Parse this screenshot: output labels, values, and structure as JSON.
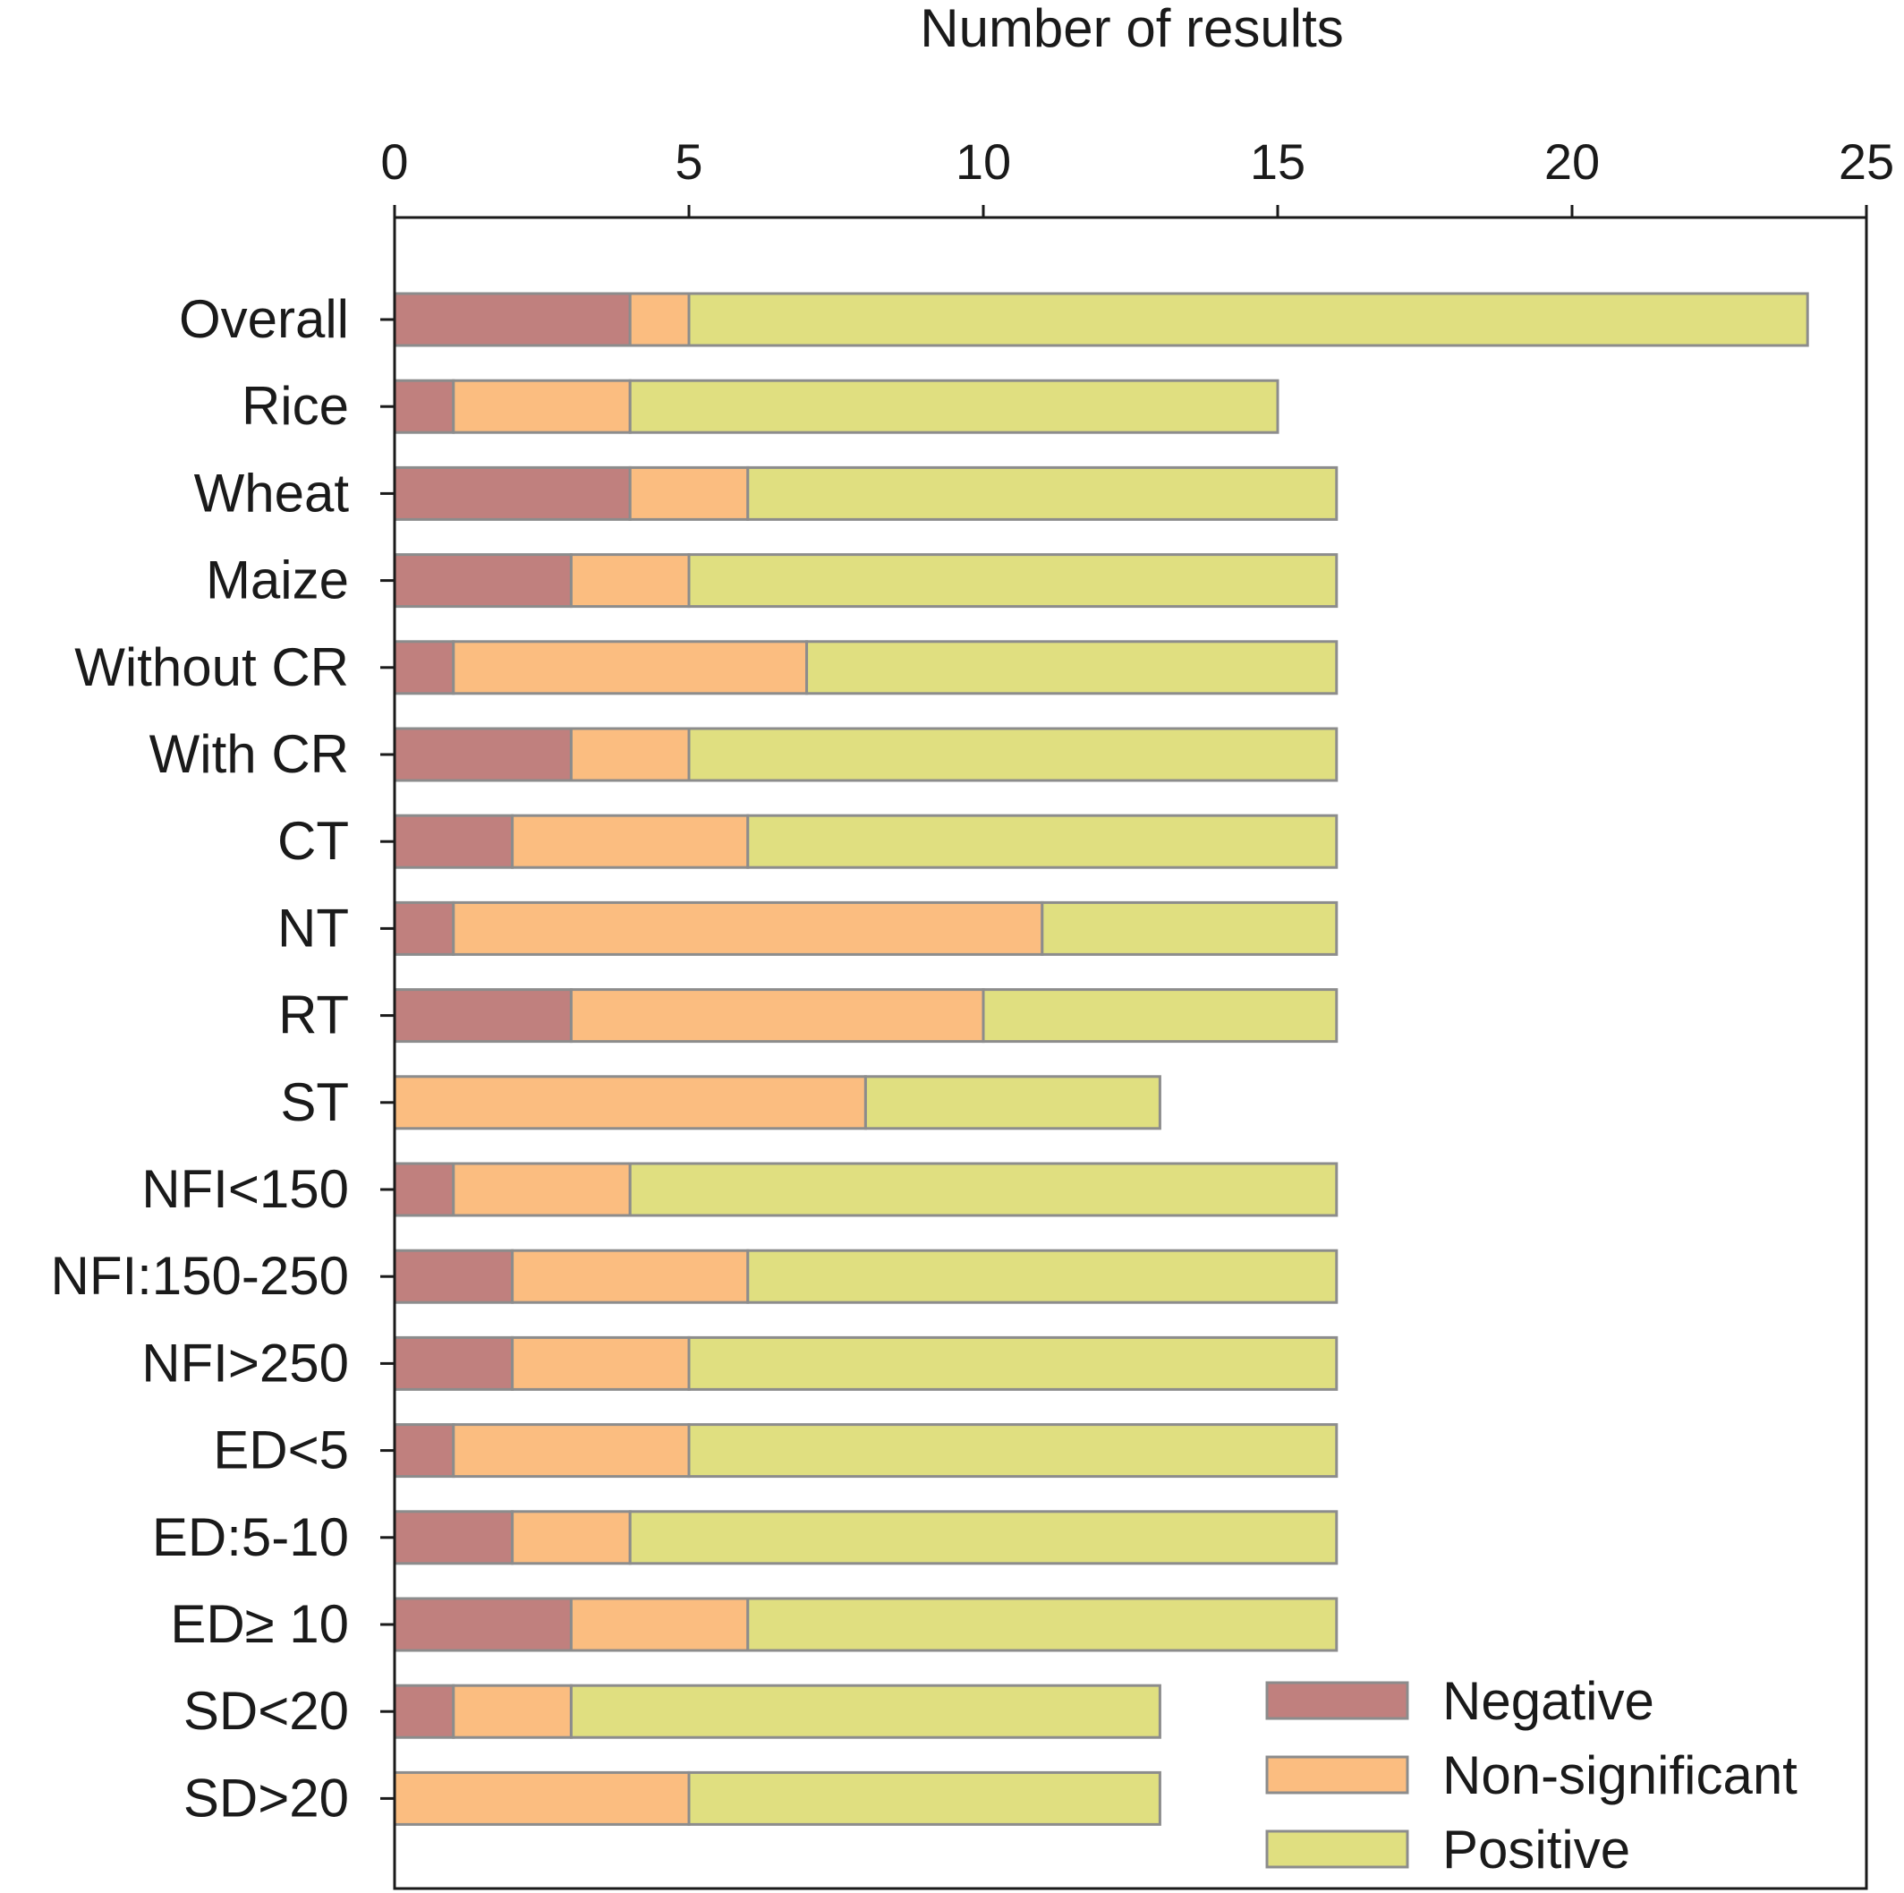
{
  "chart_data": {
    "type": "bar",
    "orientation": "horizontal",
    "stacked": true,
    "xlabel": "Number of results",
    "xlabel_position": "top",
    "xlim": [
      0,
      25
    ],
    "xticks": [
      0,
      5,
      10,
      15,
      20,
      25
    ],
    "grid": false,
    "legend_position": "bottom-right",
    "categories": [
      "Overall",
      "Rice",
      "Wheat",
      "Maize",
      "Without CR",
      "With CR",
      "CT",
      "NT",
      "RT",
      "ST",
      "NFI<150",
      "NFI:150-250",
      "NFI>250",
      "ED<5",
      "ED:5-10",
      "ED≥ 10",
      "SD<20",
      "SD>20"
    ],
    "series": [
      {
        "name": "Negative",
        "color": "#c0807e",
        "values": [
          4,
          1,
          4,
          3,
          1,
          3,
          2,
          1,
          3,
          0,
          1,
          2,
          2,
          1,
          2,
          3,
          1,
          0
        ]
      },
      {
        "name": "Non-significant",
        "color": "#fbbd80",
        "values": [
          1,
          3,
          2,
          2,
          6,
          2,
          4,
          10,
          7,
          8,
          3,
          4,
          3,
          4,
          2,
          3,
          2,
          5
        ]
      },
      {
        "name": "Positive",
        "color": "#e0df80",
        "values": [
          19,
          11,
          10,
          11,
          9,
          11,
          10,
          5,
          6,
          5,
          12,
          10,
          11,
          11,
          12,
          10,
          10,
          8
        ]
      }
    ]
  }
}
